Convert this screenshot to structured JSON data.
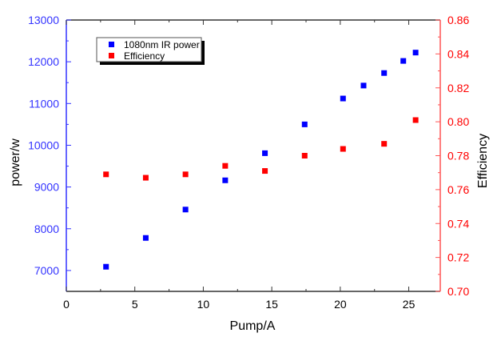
{
  "chart_data": {
    "type": "scatter",
    "title": "",
    "xlabel": "Pump/A",
    "ylabel": "power/w",
    "y2label": "Efficiency",
    "xlim": [
      0,
      27.3
    ],
    "ylim": [
      6500,
      13000
    ],
    "y2lim": [
      0.7,
      0.86
    ],
    "x_ticks": [
      0,
      5,
      10,
      15,
      20,
      25
    ],
    "x_tick_labels": [
      "0",
      "5",
      "10",
      "15",
      "20",
      "25"
    ],
    "y_ticks": [
      7000,
      8000,
      9000,
      10000,
      11000,
      12000,
      13000
    ],
    "y_tick_labels": [
      "7000",
      "8000",
      "9000",
      "10000",
      "11000",
      "12000",
      "13000"
    ],
    "y2_ticks": [
      0.7,
      0.72,
      0.74,
      0.76,
      0.78,
      0.8,
      0.82,
      0.84,
      0.86
    ],
    "y2_tick_labels": [
      "0.70",
      "0.72",
      "0.74",
      "0.76",
      "0.78",
      "0.80",
      "0.82",
      "0.84",
      "0.86"
    ],
    "grid": false,
    "legend_position": "top-left",
    "colors": {
      "power": "#0000ff",
      "efficiency": "#ff0000",
      "left_axis": "#3333ff",
      "right_axis": "#ff5555",
      "frame": "#333333"
    },
    "series": [
      {
        "name": "1080nm IR power",
        "axis": "left",
        "color": "#0000ff",
        "x": [
          2.9,
          5.8,
          8.7,
          11.6,
          14.5,
          17.4,
          20.2,
          21.7,
          23.2,
          24.6,
          25.5
        ],
        "y": [
          7090,
          7780,
          8460,
          9160,
          9810,
          10500,
          11120,
          11430,
          11730,
          12020,
          12220
        ]
      },
      {
        "name": "Efficiency",
        "axis": "right",
        "color": "#ff0000",
        "x": [
          2.9,
          5.8,
          8.7,
          11.6,
          14.5,
          17.4,
          20.2,
          23.2,
          25.5
        ],
        "y": [
          0.769,
          0.767,
          0.769,
          0.774,
          0.771,
          0.78,
          0.784,
          0.787,
          0.801
        ]
      }
    ]
  }
}
